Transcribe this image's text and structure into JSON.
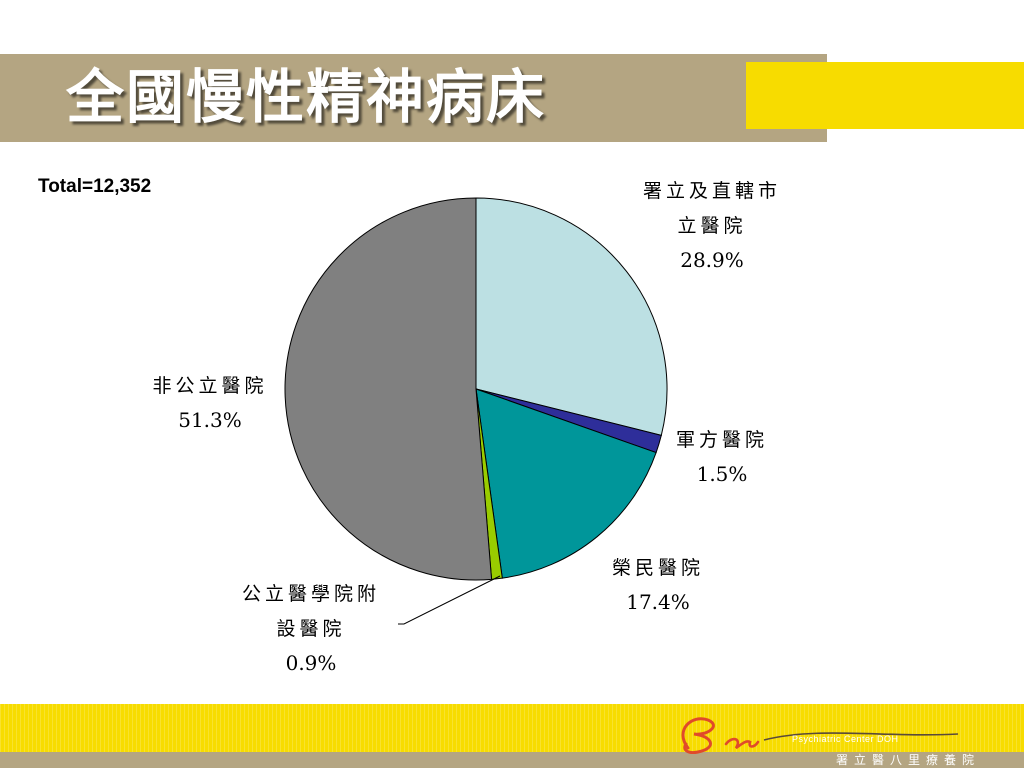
{
  "slide": {
    "title": "全國慢性精神病床",
    "total_label": "Total=12,352"
  },
  "footer": {
    "logo_script": "Bali",
    "logo_subtitle": "Psychiatric Center DOH",
    "logo_chinese": "署立醫八里療養院"
  },
  "colors": {
    "title_bar": "#b4a582",
    "accent_yellow": "#f7dc00",
    "logo_red": "#e04a2a"
  },
  "chart_data": {
    "type": "pie",
    "start_angle_deg": 0,
    "direction": "clockwise",
    "slices": [
      {
        "label_lines": [
          "署立及直轄市",
          "立醫院"
        ],
        "pct_text": "28.9%",
        "value": 28.9,
        "color": "#bce0e3"
      },
      {
        "label_lines": [
          "軍方醫院"
        ],
        "pct_text": "1.5%",
        "value": 1.5,
        "color": "#2e2e9a"
      },
      {
        "label_lines": [
          "榮民醫院"
        ],
        "pct_text": "17.4%",
        "value": 17.4,
        "color": "#00969a"
      },
      {
        "label_lines": [
          "公立醫學院附",
          "設醫院"
        ],
        "pct_text": "0.9%",
        "value": 0.9,
        "color": "#99cc00"
      },
      {
        "label_lines": [
          "非公立醫院"
        ],
        "pct_text": "51.3%",
        "value": 51.3,
        "color": "#808080"
      }
    ]
  }
}
